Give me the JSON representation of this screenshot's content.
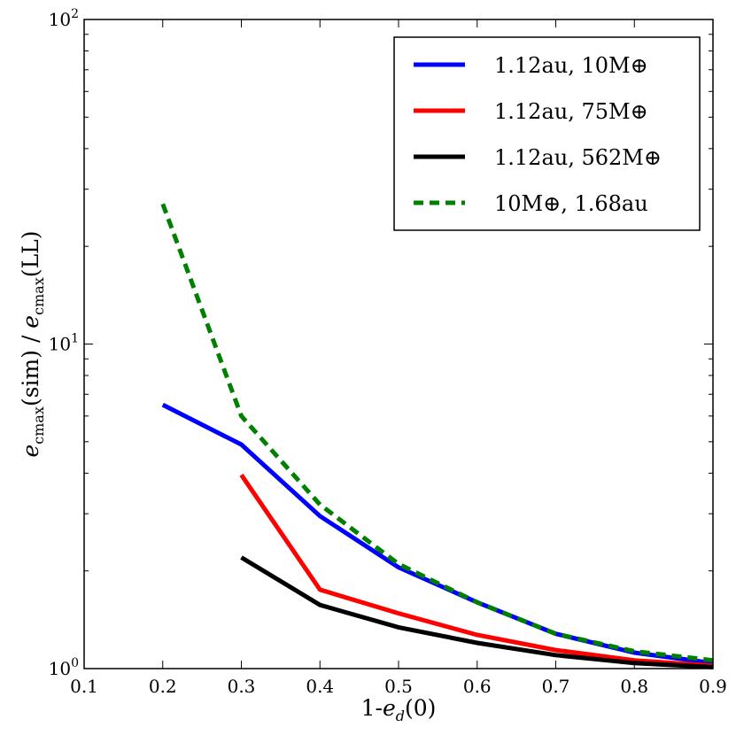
{
  "chart_data": {
    "type": "line",
    "title": "",
    "xlabel": "1-e_d(0)",
    "ylabel": "e_cmax(sim) / e_cmax(LL)",
    "x_scale": "linear",
    "y_scale": "log",
    "xlim": [
      0.1,
      0.9
    ],
    "ylim": [
      1,
      100
    ],
    "x_ticks": [
      0.1,
      0.2,
      0.3,
      0.4,
      0.5,
      0.6,
      0.7,
      0.8,
      0.9
    ],
    "x_tick_labels": [
      "0.1",
      "0.2",
      "0.3",
      "0.4",
      "0.5",
      "0.6",
      "0.7",
      "0.8",
      "0.9"
    ],
    "y_major_ticks": [
      {
        "value": 1,
        "base": "10",
        "exp": "0"
      },
      {
        "value": 10,
        "base": "10",
        "exp": "1"
      },
      {
        "value": 100,
        "base": "10",
        "exp": "2"
      }
    ],
    "grid": false,
    "legend_position": "top-right",
    "series": [
      {
        "name": "1.12au, 10M⊕",
        "color": "#0000ff",
        "style": "solid",
        "x": [
          0.2,
          0.3,
          0.4,
          0.5,
          0.6,
          0.7,
          0.8,
          0.9
        ],
        "y": [
          6.5,
          4.9,
          2.95,
          2.05,
          1.6,
          1.28,
          1.12,
          1.04
        ]
      },
      {
        "name": "1.12au, 75M⊕",
        "color": "#ff0000",
        "style": "solid",
        "x": [
          0.3,
          0.4,
          0.5,
          0.6,
          0.7,
          0.8,
          0.9
        ],
        "y": [
          3.95,
          1.75,
          1.48,
          1.27,
          1.14,
          1.06,
          1.02
        ]
      },
      {
        "name": "1.12au, 562M⊕",
        "color": "#000000",
        "style": "solid",
        "x": [
          0.3,
          0.4,
          0.5,
          0.6,
          0.7,
          0.8,
          0.9
        ],
        "y": [
          2.2,
          1.57,
          1.34,
          1.2,
          1.1,
          1.04,
          1.01
        ]
      },
      {
        "name": "10M⊕, 1.68au",
        "color": "#008000",
        "style": "dashed",
        "x": [
          0.2,
          0.3,
          0.4,
          0.5,
          0.6,
          0.7,
          0.8,
          0.9
        ],
        "y": [
          27,
          6.0,
          3.2,
          2.1,
          1.6,
          1.28,
          1.13,
          1.06
        ]
      }
    ]
  }
}
